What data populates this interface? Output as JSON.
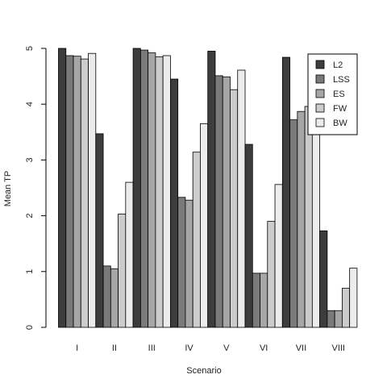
{
  "chart_data": {
    "type": "bar",
    "title": "",
    "xlabel": "Scenario",
    "ylabel": "Mean TP",
    "ylim": [
      0,
      5
    ],
    "yticks": [
      0,
      1,
      2,
      3,
      4,
      5
    ],
    "categories": [
      "I",
      "II",
      "III",
      "IV",
      "V",
      "VI",
      "VII",
      "VIII"
    ],
    "grid": false,
    "legend_position": "top-right",
    "series": [
      {
        "name": "L2",
        "color": "#3d3d3d",
        "values": [
          5.0,
          3.47,
          5.0,
          4.45,
          4.95,
          3.28,
          4.84,
          1.73
        ]
      },
      {
        "name": "LSS",
        "color": "#7a7a7a",
        "values": [
          4.87,
          1.1,
          4.97,
          2.33,
          4.51,
          0.97,
          3.72,
          0.3
        ]
      },
      {
        "name": "ES",
        "color": "#a6a6a6",
        "values": [
          4.86,
          1.05,
          4.92,
          2.28,
          4.49,
          0.97,
          3.87,
          0.3
        ]
      },
      {
        "name": "FW",
        "color": "#cccccc",
        "values": [
          4.81,
          2.03,
          4.85,
          3.14,
          4.26,
          1.9,
          3.96,
          0.7
        ]
      },
      {
        "name": "BW",
        "color": "#ececec",
        "values": [
          4.91,
          2.6,
          4.87,
          3.65,
          4.61,
          2.56,
          4.39,
          1.06
        ]
      }
    ]
  }
}
